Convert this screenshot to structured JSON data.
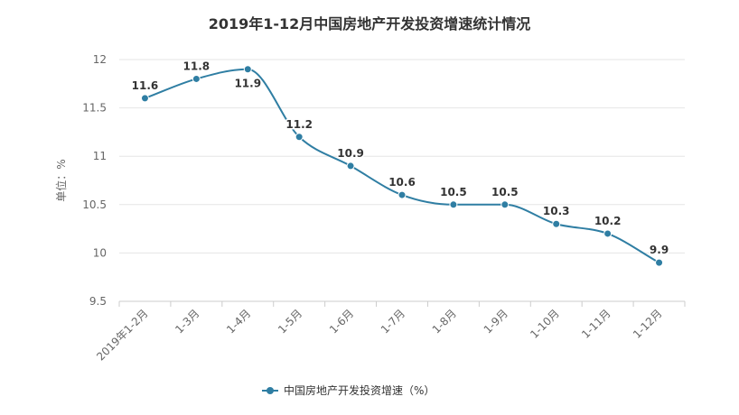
{
  "chart_data": {
    "type": "line",
    "title": "2019年1-12月中国房地产开发投资增速统计情况",
    "ylabel": "单位：%",
    "xlabel": "",
    "categories": [
      "2019年1-2月",
      "1-3月",
      "1-4月",
      "1-5月",
      "1-6月",
      "1-7月",
      "1-8月",
      "1-9月",
      "1-10月",
      "1-11月",
      "1-12月"
    ],
    "series": [
      {
        "name": "中国房地产开发投资增速（%）",
        "values": [
          11.6,
          11.8,
          11.9,
          11.2,
          10.9,
          10.6,
          10.5,
          10.5,
          10.3,
          10.2,
          9.9
        ],
        "color": "#2f7ea3"
      }
    ],
    "ylim": [
      9.5,
      12
    ],
    "yticks": [
      "9.5",
      "10",
      "10.5",
      "11",
      "11.5",
      "12"
    ],
    "grid": true,
    "legend_position": "bottom-center",
    "colors": {
      "grid": "#e6e6e6",
      "axis": "#cccccc",
      "line": "#2f7ea3"
    }
  }
}
